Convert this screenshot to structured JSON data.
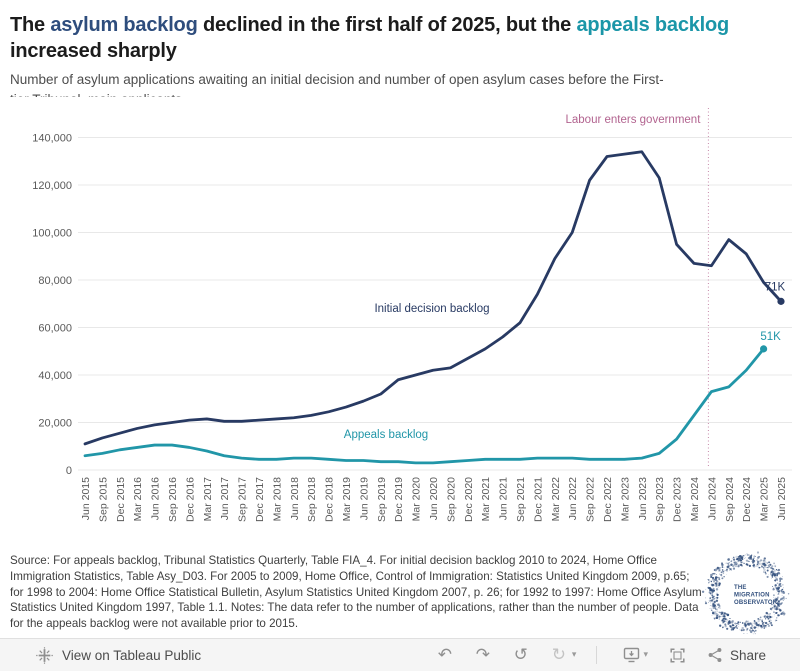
{
  "header": {
    "title_lines": [
      [
        {
          "text": "The ",
          "color": "#1c1c1c"
        },
        {
          "text": "asylum backlog",
          "color": "#2e4d7d"
        },
        {
          "text": " declined in the first half of 2025, but the ",
          "color": "#1c1c1c"
        },
        {
          "text": "appeals backlog",
          "color": "#1b96a8"
        }
      ],
      [
        {
          "text": "increased sharply",
          "color": "#1c1c1c"
        }
      ]
    ],
    "subtitle_lines": [
      "Number of asylum applications awaiting an initial decision and number of open asylum cases before the First-",
      "tier Tribunal, main applicants"
    ]
  },
  "chart_data": {
    "type": "line",
    "title": "",
    "xlabel": "",
    "ylabel": "",
    "ylim": [
      0,
      140000
    ],
    "ytick_step": 20000,
    "ytick_labels": [
      "0",
      "20,000",
      "40,000",
      "60,000",
      "80,000",
      "100,000",
      "120,000",
      "140,000"
    ],
    "grid": "horizontal",
    "legend": "inline-labels",
    "categories": [
      "Jun 2015",
      "Sep 2015",
      "Dec 2015",
      "Mar 2016",
      "Jun 2016",
      "Sep 2016",
      "Dec 2016",
      "Mar 2017",
      "Jun 2017",
      "Sep 2017",
      "Dec 2017",
      "Mar 2018",
      "Jun 2018",
      "Sep 2018",
      "Dec 2018",
      "Mar 2019",
      "Jun 2019",
      "Sep 2019",
      "Dec 2019",
      "Mar 2020",
      "Jun 2020",
      "Sep 2020",
      "Dec 2020",
      "Mar 2021",
      "Jun 2021",
      "Sep 2021",
      "Dec 2021",
      "Mar 2022",
      "Jun 2022",
      "Sep 2022",
      "Dec 2022",
      "Mar 2023",
      "Jun 2023",
      "Sep 2023",
      "Dec 2023",
      "Mar 2024",
      "Jun 2024",
      "Sep 2024",
      "Dec 2024",
      "Mar 2025",
      "Jun 2025"
    ],
    "series": [
      {
        "name": "Initial decision backlog",
        "color": "#283a63",
        "end_label": "71K",
        "values": [
          11000,
          13500,
          15500,
          17500,
          19000,
          20000,
          21000,
          21500,
          20500,
          20500,
          21000,
          21500,
          22000,
          23000,
          24500,
          26500,
          29000,
          32000,
          38000,
          40000,
          42000,
          43000,
          47000,
          51000,
          56000,
          62000,
          74000,
          89000,
          100000,
          122000,
          132000,
          133000,
          134000,
          123000,
          95000,
          87000,
          86000,
          97000,
          91000,
          79000,
          71000
        ]
      },
      {
        "name": "Appeals backlog",
        "color": "#2196a8",
        "end_label": "51K",
        "values": [
          6000,
          7000,
          8500,
          9500,
          10500,
          10500,
          9500,
          8000,
          6000,
          5000,
          4500,
          4500,
          5000,
          5000,
          4500,
          4000,
          4000,
          3500,
          3500,
          3000,
          3000,
          3500,
          4000,
          4500,
          4500,
          4500,
          5000,
          5000,
          5000,
          4500,
          4500,
          4500,
          5000,
          7000,
          13000,
          23000,
          33000,
          35000,
          42000,
          51000,
          null
        ]
      }
    ],
    "annotation": {
      "label": "Labour enters government",
      "x_category": "Jun 2024",
      "color": "#b2638f",
      "line_color": "#c78aab"
    }
  },
  "footer": {
    "source_text": "Source: For appeals backlog, Tribunal Statistics Quarterly, Table FIA_4. For initial decision backlog 2010 to 2024, Home Office Immigration Statistics, Table Asy_D03. For 2005 to 2009, Home Office, Control of Immigration: Statistics United Kingdom 2009, p.65; for 1998 to 2004: Home Office Statistical Bulletin, Asylum Statistics United Kingdom 2007, p. 26; for 1992 to 1997: Home Office Asylum Statistics United Kingdom 1997, Table 1.1. Notes: The data refer to the number of applications, rather than the number of people. Data for the appeals backlog were not available prior to 2015.",
    "logo_lines": [
      "THE",
      "MIGRATION",
      "OBSERVATORY"
    ],
    "logo_color": "#34517e"
  },
  "toolbar": {
    "view_label": "View on Tableau Public",
    "share_label": "Share",
    "glyphs": {
      "undo": "↶",
      "redo": "↷",
      "revert": "↺",
      "refresh": "↻",
      "caret": "▾"
    }
  }
}
